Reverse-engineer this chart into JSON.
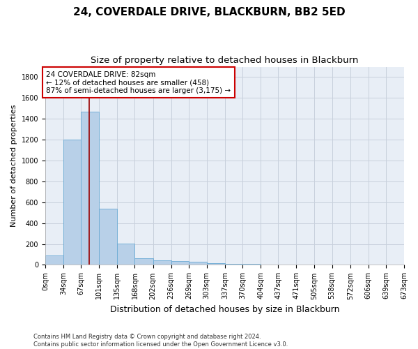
{
  "title": "24, COVERDALE DRIVE, BLACKBURN, BB2 5ED",
  "subtitle": "Size of property relative to detached houses in Blackburn",
  "xlabel": "Distribution of detached houses by size in Blackburn",
  "ylabel": "Number of detached properties",
  "bar_values": [
    90,
    1200,
    1470,
    540,
    205,
    65,
    45,
    35,
    28,
    15,
    10,
    8,
    5,
    3,
    2,
    1,
    1,
    1,
    1
  ],
  "tick_labels": [
    "0sqm",
    "34sqm",
    "67sqm",
    "101sqm",
    "135sqm",
    "168sqm",
    "202sqm",
    "236sqm",
    "269sqm",
    "303sqm",
    "337sqm",
    "370sqm",
    "404sqm",
    "437sqm",
    "471sqm",
    "505sqm",
    "538sqm",
    "572sqm",
    "606sqm",
    "639sqm",
    "673sqm"
  ],
  "bar_color": "#b8d0e8",
  "bar_edge_color": "#6aaad4",
  "grid_color": "#c8d0dc",
  "background_color": "#e8eef6",
  "annotation_line1": "24 COVERDALE DRIVE: 82sqm",
  "annotation_line2": "← 12% of detached houses are smaller (458)",
  "annotation_line3": "87% of semi-detached houses are larger (3,175) →",
  "annotation_box_color": "#ffffff",
  "annotation_box_edge_color": "#cc0000",
  "vline_x": 82,
  "vline_color": "#990000",
  "ylim": [
    0,
    1900
  ],
  "yticks": [
    0,
    200,
    400,
    600,
    800,
    1000,
    1200,
    1400,
    1600,
    1800
  ],
  "bin_edges": [
    0,
    34,
    67,
    101,
    135,
    168,
    202,
    236,
    269,
    303,
    337,
    370,
    404,
    437,
    471,
    505,
    538,
    572,
    606,
    639,
    673
  ],
  "footnote1": "Contains HM Land Registry data © Crown copyright and database right 2024.",
  "footnote2": "Contains public sector information licensed under the Open Government Licence v3.0.",
  "title_fontsize": 11,
  "subtitle_fontsize": 9.5,
  "ylabel_fontsize": 8,
  "xlabel_fontsize": 9,
  "tick_fontsize": 7,
  "footnote_fontsize": 6
}
